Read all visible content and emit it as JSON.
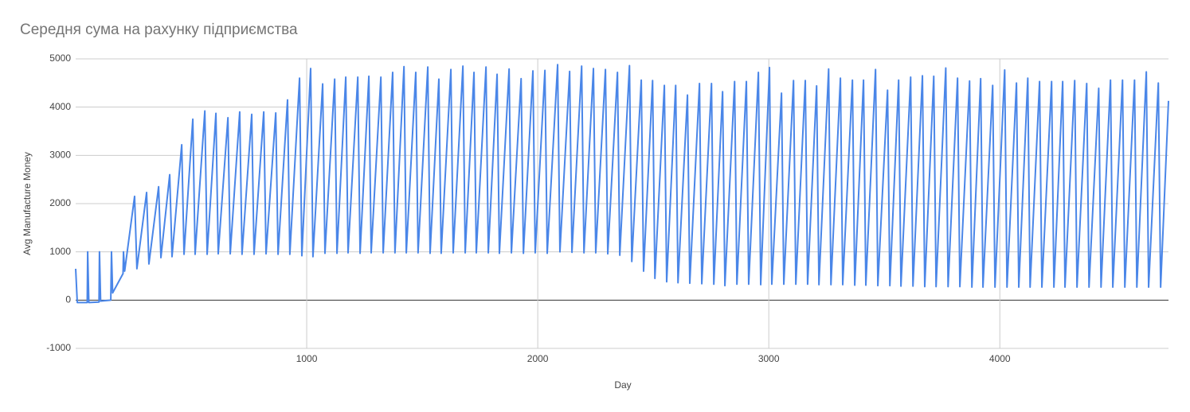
{
  "chart_data": {
    "type": "line",
    "title": "Середня сума на рахунку підприємства",
    "x_label": "Day",
    "y_label": "Avg Manufacture Money",
    "color": "#4a86e8",
    "grid": true,
    "xlim": [
      0,
      4730
    ],
    "ylim": [
      -1000,
      5000
    ],
    "xticks": [
      1000,
      2000,
      3000,
      4000
    ],
    "yticks": [
      -1000,
      0,
      1000,
      2000,
      3000,
      4000,
      5000
    ],
    "x": [
      0,
      7,
      50,
      52,
      57,
      101,
      103,
      108,
      152,
      155,
      160,
      205,
      207,
      212,
      255,
      265,
      307,
      317,
      359,
      369,
      407,
      417,
      459,
      469,
      507,
      517,
      559,
      569,
      607,
      617,
      659,
      669,
      710,
      720,
      762,
      772,
      814,
      824,
      866,
      876,
      917,
      927,
      969,
      979,
      1017,
      1027,
      1069,
      1079,
      1121,
      1131,
      1169,
      1179,
      1221,
      1231,
      1269,
      1279,
      1321,
      1331,
      1372,
      1382,
      1421,
      1431,
      1472,
      1482,
      1524,
      1534,
      1572,
      1582,
      1624,
      1634,
      1676,
      1686,
      1724,
      1734,
      1776,
      1786,
      1824,
      1834,
      1876,
      1886,
      1928,
      1938,
      1979,
      1989,
      2031,
      2041,
      2086,
      2096,
      2138,
      2148,
      2190,
      2200,
      2241,
      2251,
      2293,
      2303,
      2345,
      2355,
      2397,
      2407,
      2448,
      2458,
      2497,
      2507,
      2548,
      2558,
      2597,
      2607,
      2648,
      2658,
      2700,
      2710,
      2752,
      2762,
      2800,
      2810,
      2852,
      2862,
      2903,
      2913,
      2955,
      2965,
      3003,
      3013,
      3055,
      3065,
      3107,
      3117,
      3158,
      3168,
      3207,
      3217,
      3259,
      3269,
      3310,
      3320,
      3362,
      3372,
      3410,
      3420,
      3462,
      3472,
      3514,
      3524,
      3562,
      3572,
      3614,
      3624,
      3665,
      3675,
      3714,
      3724,
      3766,
      3776,
      3817,
      3827,
      3869,
      3879,
      3917,
      3927,
      3969,
      3979,
      4021,
      4031,
      4072,
      4082,
      4121,
      4131,
      4172,
      4182,
      4224,
      4234,
      4272,
      4282,
      4324,
      4334,
      4376,
      4386,
      4428,
      4438,
      4479,
      4489,
      4531,
      4541,
      4583,
      4593,
      4634,
      4644,
      4686,
      4696,
      4730
    ],
    "values": [
      650,
      -50,
      -50,
      1000,
      -50,
      -40,
      1000,
      -20,
      0,
      1000,
      150,
      550,
      1000,
      600,
      2150,
      650,
      2230,
      750,
      2350,
      880,
      2600,
      900,
      3220,
      950,
      3750,
      950,
      3920,
      950,
      3870,
      960,
      3780,
      960,
      3900,
      950,
      3850,
      950,
      3900,
      960,
      3880,
      950,
      4150,
      950,
      4600,
      920,
      4800,
      900,
      4480,
      970,
      4580,
      970,
      4620,
      980,
      4620,
      970,
      4640,
      980,
      4620,
      980,
      4720,
      980,
      4840,
      980,
      4720,
      980,
      4830,
      970,
      4580,
      970,
      4780,
      980,
      4850,
      980,
      4720,
      980,
      4830,
      980,
      4680,
      970,
      4790,
      980,
      4590,
      970,
      4750,
      980,
      4760,
      970,
      4880,
      1000,
      4740,
      990,
      4850,
      980,
      4800,
      980,
      4780,
      960,
      4720,
      930,
      4860,
      800,
      4560,
      600,
      4550,
      450,
      4450,
      380,
      4450,
      360,
      4250,
      350,
      4490,
      340,
      4490,
      330,
      4320,
      300,
      4530,
      330,
      4530,
      330,
      4720,
      320,
      4820,
      330,
      4290,
      330,
      4550,
      330,
      4550,
      330,
      4440,
      320,
      4790,
      320,
      4600,
      320,
      4560,
      310,
      4560,
      310,
      4780,
      300,
      4350,
      300,
      4560,
      290,
      4620,
      290,
      4650,
      280,
      4640,
      280,
      4810,
      280,
      4600,
      280,
      4540,
      270,
      4590,
      270,
      4450,
      270,
      4770,
      270,
      4500,
      270,
      4600,
      270,
      4530,
      270,
      4530,
      270,
      4530,
      270,
      4550,
      270,
      4490,
      270,
      4390,
      270,
      4560,
      270,
      4560,
      270,
      4560,
      270,
      4730,
      270,
      4500,
      270,
      4130
    ]
  }
}
